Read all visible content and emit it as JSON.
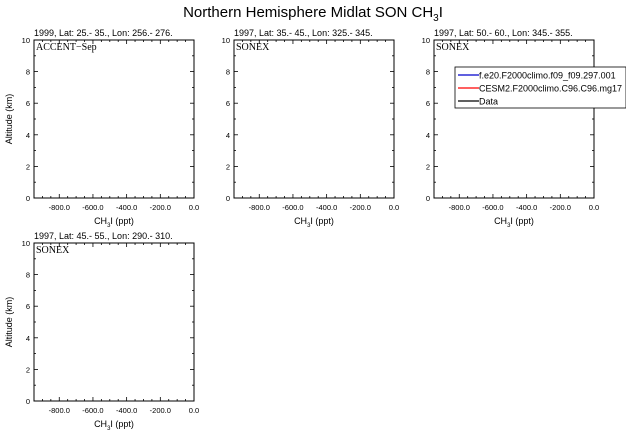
{
  "title": {
    "main": "Northern Hemisphere Midlat SON CH",
    "sub": "3",
    "tail": "I"
  },
  "legend": [
    {
      "label": "f.e20.F2000climo.f09_f09.297.001",
      "color": "#0000cc"
    },
    {
      "label": "CESM2.F2000climo.C96.C96.mg17",
      "color": "#ff0000"
    },
    {
      "label": "Data",
      "color": "#000000"
    }
  ],
  "chart_data": [
    {
      "type": "line",
      "header": "1999, Lat: 25.- 35., Lon: 256.- 276.",
      "campaign": "ACCENT−Sep",
      "xlabel": {
        "pre": "CH",
        "sub": "3",
        "post": "I (ppt)"
      },
      "ylabel": "Altitude (km)",
      "xlim": [
        -950,
        0
      ],
      "ylim": [
        0,
        10
      ],
      "xticks": [
        "-800.0",
        "-600.0",
        "-400.0",
        "-200.0",
        "0.0"
      ],
      "yticks": [
        "0",
        "2",
        "4",
        "6",
        "8",
        "10"
      ],
      "series": []
    },
    {
      "type": "line",
      "header": "1997, Lat: 35.- 45., Lon: 325.- 345.",
      "campaign": "SONEX",
      "xlabel": {
        "pre": "CH",
        "sub": "3",
        "post": "I (ppt)"
      },
      "ylabel": "",
      "xlim": [
        -950,
        0
      ],
      "ylim": [
        0,
        10
      ],
      "xticks": [
        "-800.0",
        "-600.0",
        "-400.0",
        "-200.0",
        "0.0"
      ],
      "yticks": [
        "0",
        "2",
        "4",
        "6",
        "8",
        "10"
      ],
      "series": []
    },
    {
      "type": "line",
      "header": "1997, Lat: 50.- 60., Lon: 345.- 355.",
      "campaign": "SONEX",
      "xlabel": {
        "pre": "CH",
        "sub": "3",
        "post": "I (ppt)"
      },
      "ylabel": "",
      "xlim": [
        -950,
        0
      ],
      "ylim": [
        0,
        10
      ],
      "xticks": [
        "-800.0",
        "-600.0",
        "-400.0",
        "-200.0",
        "0.0"
      ],
      "yticks": [
        "0",
        "2",
        "4",
        "6",
        "8",
        "10"
      ],
      "series": []
    },
    {
      "type": "line",
      "header": "1997, Lat: 45.- 55., Lon: 290.- 310.",
      "campaign": "SONEX",
      "xlabel": {
        "pre": "CH",
        "sub": "3",
        "post": "I (ppt)"
      },
      "ylabel": "Altitude (km)",
      "xlim": [
        -950,
        0
      ],
      "ylim": [
        0,
        10
      ],
      "xticks": [
        "-800.0",
        "-600.0",
        "-400.0",
        "-200.0",
        "0.0"
      ],
      "yticks": [
        "0",
        "2",
        "4",
        "6",
        "8",
        "10"
      ],
      "series": []
    }
  ]
}
